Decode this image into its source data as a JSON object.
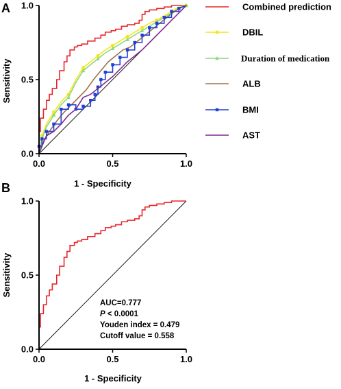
{
  "chart_data": [
    {
      "panel": "A",
      "type": "line",
      "xlabel": "1 - Specificity",
      "ylabel": "Sensitivity",
      "xlim": [
        0,
        1
      ],
      "ylim": [
        0,
        1
      ],
      "xticks": [
        "0.0",
        "0.5",
        "1.0"
      ],
      "yticks": [
        "0.0",
        "0.5",
        "1.0"
      ],
      "legend_position": "right",
      "reference_line": true,
      "series": [
        {
          "name": "Combined prediction",
          "color": "#e8262b",
          "marker": "none",
          "x": [
            0,
            0,
            0.01,
            0.01,
            0.03,
            0.03,
            0.05,
            0.05,
            0.07,
            0.07,
            0.09,
            0.09,
            0.12,
            0.12,
            0.14,
            0.14,
            0.17,
            0.17,
            0.19,
            0.19,
            0.21,
            0.21,
            0.24,
            0.24,
            0.26,
            0.26,
            0.29,
            0.29,
            0.33,
            0.33,
            0.38,
            0.38,
            0.42,
            0.42,
            0.45,
            0.45,
            0.49,
            0.49,
            0.52,
            0.52,
            0.56,
            0.56,
            0.6,
            0.6,
            0.65,
            0.65,
            0.68,
            0.68,
            0.7,
            0.7,
            0.72,
            0.72,
            0.75,
            0.75,
            0.8,
            0.8,
            0.85,
            0.85,
            0.9,
            0.9,
            0.95,
            1
          ],
          "y": [
            0,
            0.15,
            0.15,
            0.24,
            0.24,
            0.3,
            0.3,
            0.36,
            0.36,
            0.4,
            0.4,
            0.44,
            0.44,
            0.5,
            0.5,
            0.56,
            0.56,
            0.62,
            0.62,
            0.66,
            0.66,
            0.7,
            0.7,
            0.72,
            0.72,
            0.73,
            0.73,
            0.74,
            0.74,
            0.76,
            0.76,
            0.78,
            0.78,
            0.8,
            0.8,
            0.82,
            0.82,
            0.83,
            0.83,
            0.84,
            0.84,
            0.86,
            0.86,
            0.87,
            0.87,
            0.88,
            0.88,
            0.9,
            0.9,
            0.94,
            0.94,
            0.96,
            0.96,
            0.97,
            0.97,
            0.98,
            0.98,
            0.99,
            0.99,
            1,
            1,
            1
          ]
        },
        {
          "name": "DBIL",
          "color": "#f5e61e",
          "marker": "circle",
          "x": [
            0,
            0.02,
            0.05,
            0.1,
            0.15,
            0.2,
            0.25,
            0.3,
            0.35,
            0.4,
            0.45,
            0.5,
            0.55,
            0.6,
            0.65,
            0.7,
            0.75,
            0.8,
            0.85,
            0.9,
            0.95,
            1
          ],
          "y": [
            0,
            0.12,
            0.2,
            0.28,
            0.35,
            0.4,
            0.5,
            0.58,
            0.62,
            0.66,
            0.7,
            0.73,
            0.76,
            0.79,
            0.82,
            0.85,
            0.88,
            0.9,
            0.93,
            0.96,
            0.99,
            1
          ]
        },
        {
          "name": "Duration of medication",
          "color": "#8bd97e",
          "marker": "triangle",
          "x": [
            0,
            0.02,
            0.05,
            0.1,
            0.15,
            0.2,
            0.25,
            0.3,
            0.35,
            0.4,
            0.45,
            0.5,
            0.55,
            0.6,
            0.65,
            0.7,
            0.75,
            0.8,
            0.85,
            0.9,
            0.95,
            1
          ],
          "y": [
            0,
            0.1,
            0.18,
            0.26,
            0.33,
            0.38,
            0.48,
            0.56,
            0.6,
            0.64,
            0.68,
            0.71,
            0.74,
            0.77,
            0.8,
            0.83,
            0.86,
            0.89,
            0.92,
            0.95,
            0.98,
            1
          ]
        },
        {
          "name": "ALB",
          "color": "#9b7248",
          "marker": "none",
          "x": [
            0,
            0.03,
            0.07,
            0.12,
            0.17,
            0.22,
            0.27,
            0.32,
            0.37,
            0.42,
            0.47,
            0.52,
            0.57,
            0.62,
            0.67,
            0.72,
            0.77,
            0.82,
            0.87,
            0.92,
            0.97,
            1
          ],
          "y": [
            0,
            0.08,
            0.15,
            0.22,
            0.28,
            0.33,
            0.38,
            0.43,
            0.5,
            0.56,
            0.62,
            0.66,
            0.7,
            0.72,
            0.76,
            0.8,
            0.84,
            0.88,
            0.92,
            0.96,
            0.99,
            1
          ]
        },
        {
          "name": "BMI",
          "color": "#1f3fd6",
          "marker": "square",
          "x": [
            0,
            0,
            0.02,
            0.02,
            0.05,
            0.05,
            0.1,
            0.1,
            0.15,
            0.15,
            0.2,
            0.2,
            0.25,
            0.25,
            0.3,
            0.3,
            0.35,
            0.35,
            0.38,
            0.38,
            0.4,
            0.4,
            0.42,
            0.42,
            0.45,
            0.45,
            0.5,
            0.5,
            0.55,
            0.55,
            0.6,
            0.6,
            0.65,
            0.65,
            0.7,
            0.7,
            0.75,
            0.75,
            0.8,
            0.8,
            0.85,
            0.85,
            0.9,
            0.9,
            0.95,
            0.95,
            1
          ],
          "y": [
            0,
            0.05,
            0.05,
            0.1,
            0.1,
            0.15,
            0.15,
            0.2,
            0.2,
            0.3,
            0.3,
            0.33,
            0.33,
            0.3,
            0.3,
            0.32,
            0.32,
            0.36,
            0.36,
            0.4,
            0.4,
            0.45,
            0.45,
            0.5,
            0.5,
            0.55,
            0.55,
            0.6,
            0.6,
            0.65,
            0.65,
            0.7,
            0.7,
            0.75,
            0.75,
            0.8,
            0.8,
            0.85,
            0.85,
            0.88,
            0.88,
            0.92,
            0.92,
            0.96,
            0.96,
            0.98,
            1
          ]
        },
        {
          "name": "AST",
          "color": "#7a2c8c",
          "marker": "none",
          "x": [
            0,
            0.02,
            0.05,
            0.1,
            0.15,
            0.2,
            0.25,
            0.3,
            0.35,
            0.4,
            0.45,
            0.5,
            0.55,
            0.6,
            0.65,
            0.7,
            0.75,
            0.8,
            0.85,
            0.9,
            0.95,
            1
          ],
          "y": [
            0,
            0.05,
            0.12,
            0.15,
            0.2,
            0.26,
            0.3,
            0.38,
            0.4,
            0.44,
            0.48,
            0.52,
            0.57,
            0.62,
            0.66,
            0.7,
            0.75,
            0.8,
            0.85,
            0.9,
            0.95,
            1
          ]
        }
      ]
    },
    {
      "panel": "B",
      "type": "line",
      "xlabel": "1 - Specificity",
      "ylabel": "Sensitivity",
      "xlim": [
        0,
        1
      ],
      "ylim": [
        0,
        1
      ],
      "xticks": [
        "0.0",
        "0.5",
        "1.0"
      ],
      "yticks": [
        "0.0",
        "0.5",
        "1.0"
      ],
      "reference_line": true,
      "annotations": [
        {
          "text": "AUC=0.777"
        },
        {
          "prefix": "P",
          "text": " < 0.0001"
        },
        {
          "text": "Youden index = 0.479"
        },
        {
          "text": "Cutoff value = 0.558"
        }
      ],
      "series": [
        {
          "color": "#e8262b",
          "marker": "none",
          "x": [
            0,
            0,
            0.01,
            0.01,
            0.03,
            0.03,
            0.05,
            0.05,
            0.07,
            0.07,
            0.09,
            0.09,
            0.12,
            0.12,
            0.14,
            0.14,
            0.17,
            0.17,
            0.19,
            0.19,
            0.21,
            0.21,
            0.24,
            0.24,
            0.26,
            0.26,
            0.29,
            0.29,
            0.33,
            0.33,
            0.38,
            0.38,
            0.42,
            0.42,
            0.45,
            0.45,
            0.49,
            0.49,
            0.52,
            0.52,
            0.56,
            0.56,
            0.6,
            0.6,
            0.65,
            0.65,
            0.68,
            0.68,
            0.7,
            0.7,
            0.72,
            0.72,
            0.75,
            0.75,
            0.8,
            0.8,
            0.85,
            0.85,
            0.9,
            0.9,
            0.95,
            1
          ],
          "y": [
            0,
            0.15,
            0.15,
            0.24,
            0.24,
            0.3,
            0.3,
            0.36,
            0.36,
            0.4,
            0.4,
            0.44,
            0.44,
            0.5,
            0.5,
            0.56,
            0.56,
            0.62,
            0.62,
            0.66,
            0.66,
            0.7,
            0.7,
            0.72,
            0.72,
            0.73,
            0.73,
            0.74,
            0.74,
            0.76,
            0.76,
            0.78,
            0.78,
            0.8,
            0.8,
            0.82,
            0.82,
            0.83,
            0.83,
            0.84,
            0.84,
            0.86,
            0.86,
            0.87,
            0.87,
            0.88,
            0.88,
            0.9,
            0.9,
            0.94,
            0.94,
            0.96,
            0.96,
            0.97,
            0.97,
            0.98,
            0.98,
            0.99,
            0.99,
            1,
            1,
            1
          ]
        }
      ]
    }
  ],
  "legend": {
    "items": [
      {
        "label": "Combined prediction",
        "color": "#e8262b",
        "marker": "none",
        "serif": false
      },
      {
        "label": "DBIL",
        "color": "#f5e61e",
        "marker": "circle",
        "serif": false
      },
      {
        "label": "Duration of medication",
        "color": "#8bd97e",
        "marker": "triangle",
        "serif": true
      },
      {
        "label": "ALB",
        "color": "#9b7248",
        "marker": "none",
        "serif": false
      },
      {
        "label": "BMI",
        "color": "#1f3fd6",
        "marker": "square",
        "serif": false
      },
      {
        "label": "AST",
        "color": "#7a2c8c",
        "marker": "none",
        "serif": false
      }
    ]
  },
  "panel_labels": [
    "A",
    "B"
  ]
}
